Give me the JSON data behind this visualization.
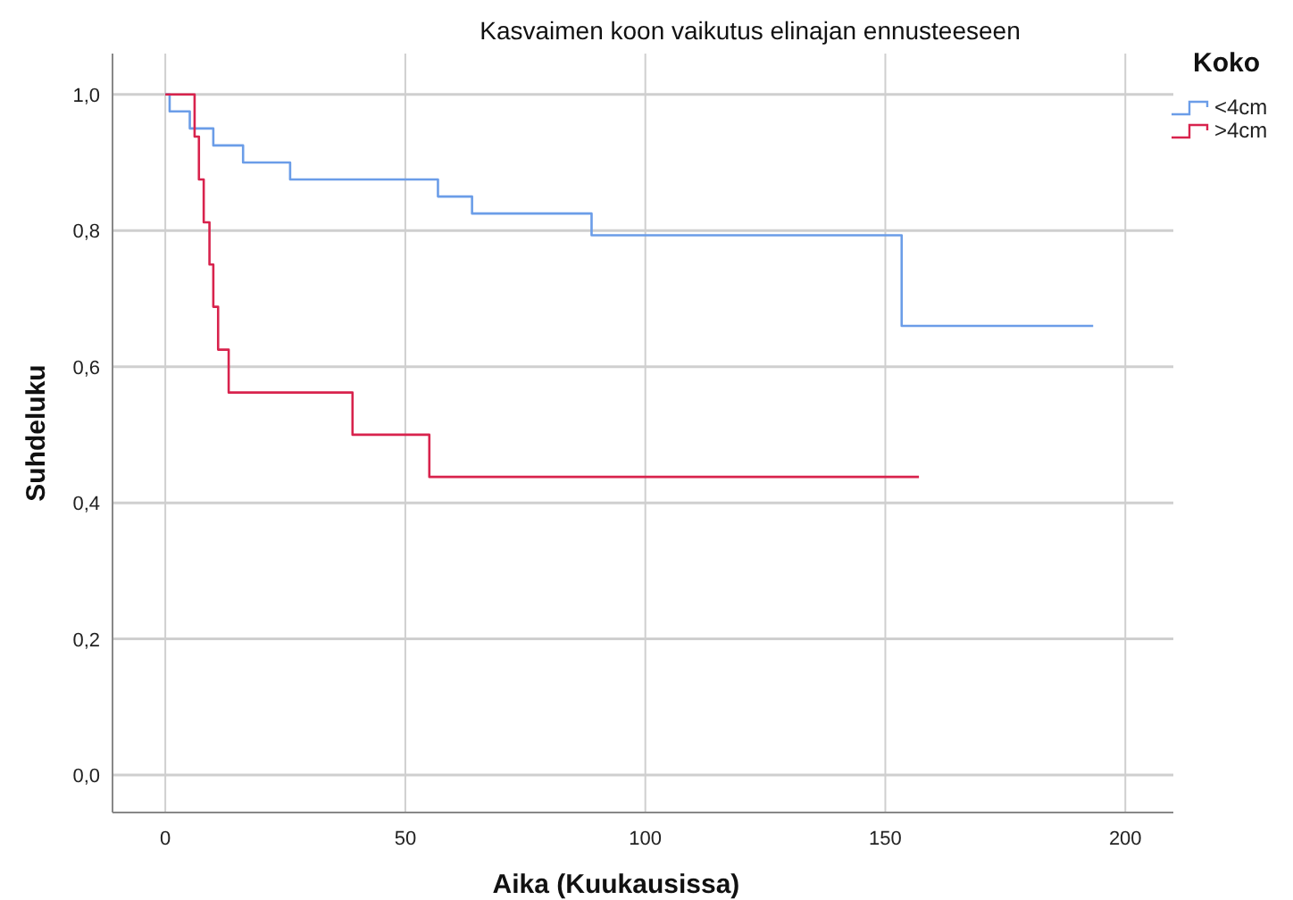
{
  "chart_data": {
    "type": "step",
    "title": "Kasvaimen koon vaikutus elinajan ennusteeseen",
    "xlabel": "Aika (Kuukausissa)",
    "ylabel": "Suhdeluku",
    "legend_title": "Koko",
    "xlim": [
      -11,
      210
    ],
    "xticks": [
      0,
      50,
      100,
      150,
      200
    ],
    "ylim": [
      -0.055,
      1.06
    ],
    "yticks": [
      {
        "value": 0,
        "label": "0,0"
      },
      {
        "value": 0.2,
        "label": "0,2"
      },
      {
        "value": 0.4,
        "label": "0,4"
      },
      {
        "value": 0.6,
        "label": "0,6"
      },
      {
        "value": 0.8,
        "label": "0,8"
      },
      {
        "value": 1,
        "label": "1,0"
      }
    ],
    "grid": true,
    "legend": "top right",
    "line_style": "solid",
    "series": [
      {
        "name": "<4cm",
        "color": "#6b9de8",
        "x": [
          0,
          0.9,
          5.1,
          10,
          16.2,
          26,
          56.8,
          63.9,
          88.8,
          153.4,
          193.3
        ],
        "values": [
          1,
          0.975,
          0.95,
          0.925,
          0.9,
          0.875,
          0.85,
          0.825,
          0.793,
          0.66,
          0.66
        ]
      },
      {
        "name": ">4cm",
        "color": "#d8234d",
        "x": [
          0,
          6.1,
          7,
          8,
          9.2,
          10,
          11,
          13.2,
          39,
          55,
          157
        ],
        "values": [
          1,
          0.938,
          0.875,
          0.812,
          0.75,
          0.688,
          0.625,
          0.562,
          0.5,
          0.438,
          0.438
        ]
      }
    ]
  }
}
